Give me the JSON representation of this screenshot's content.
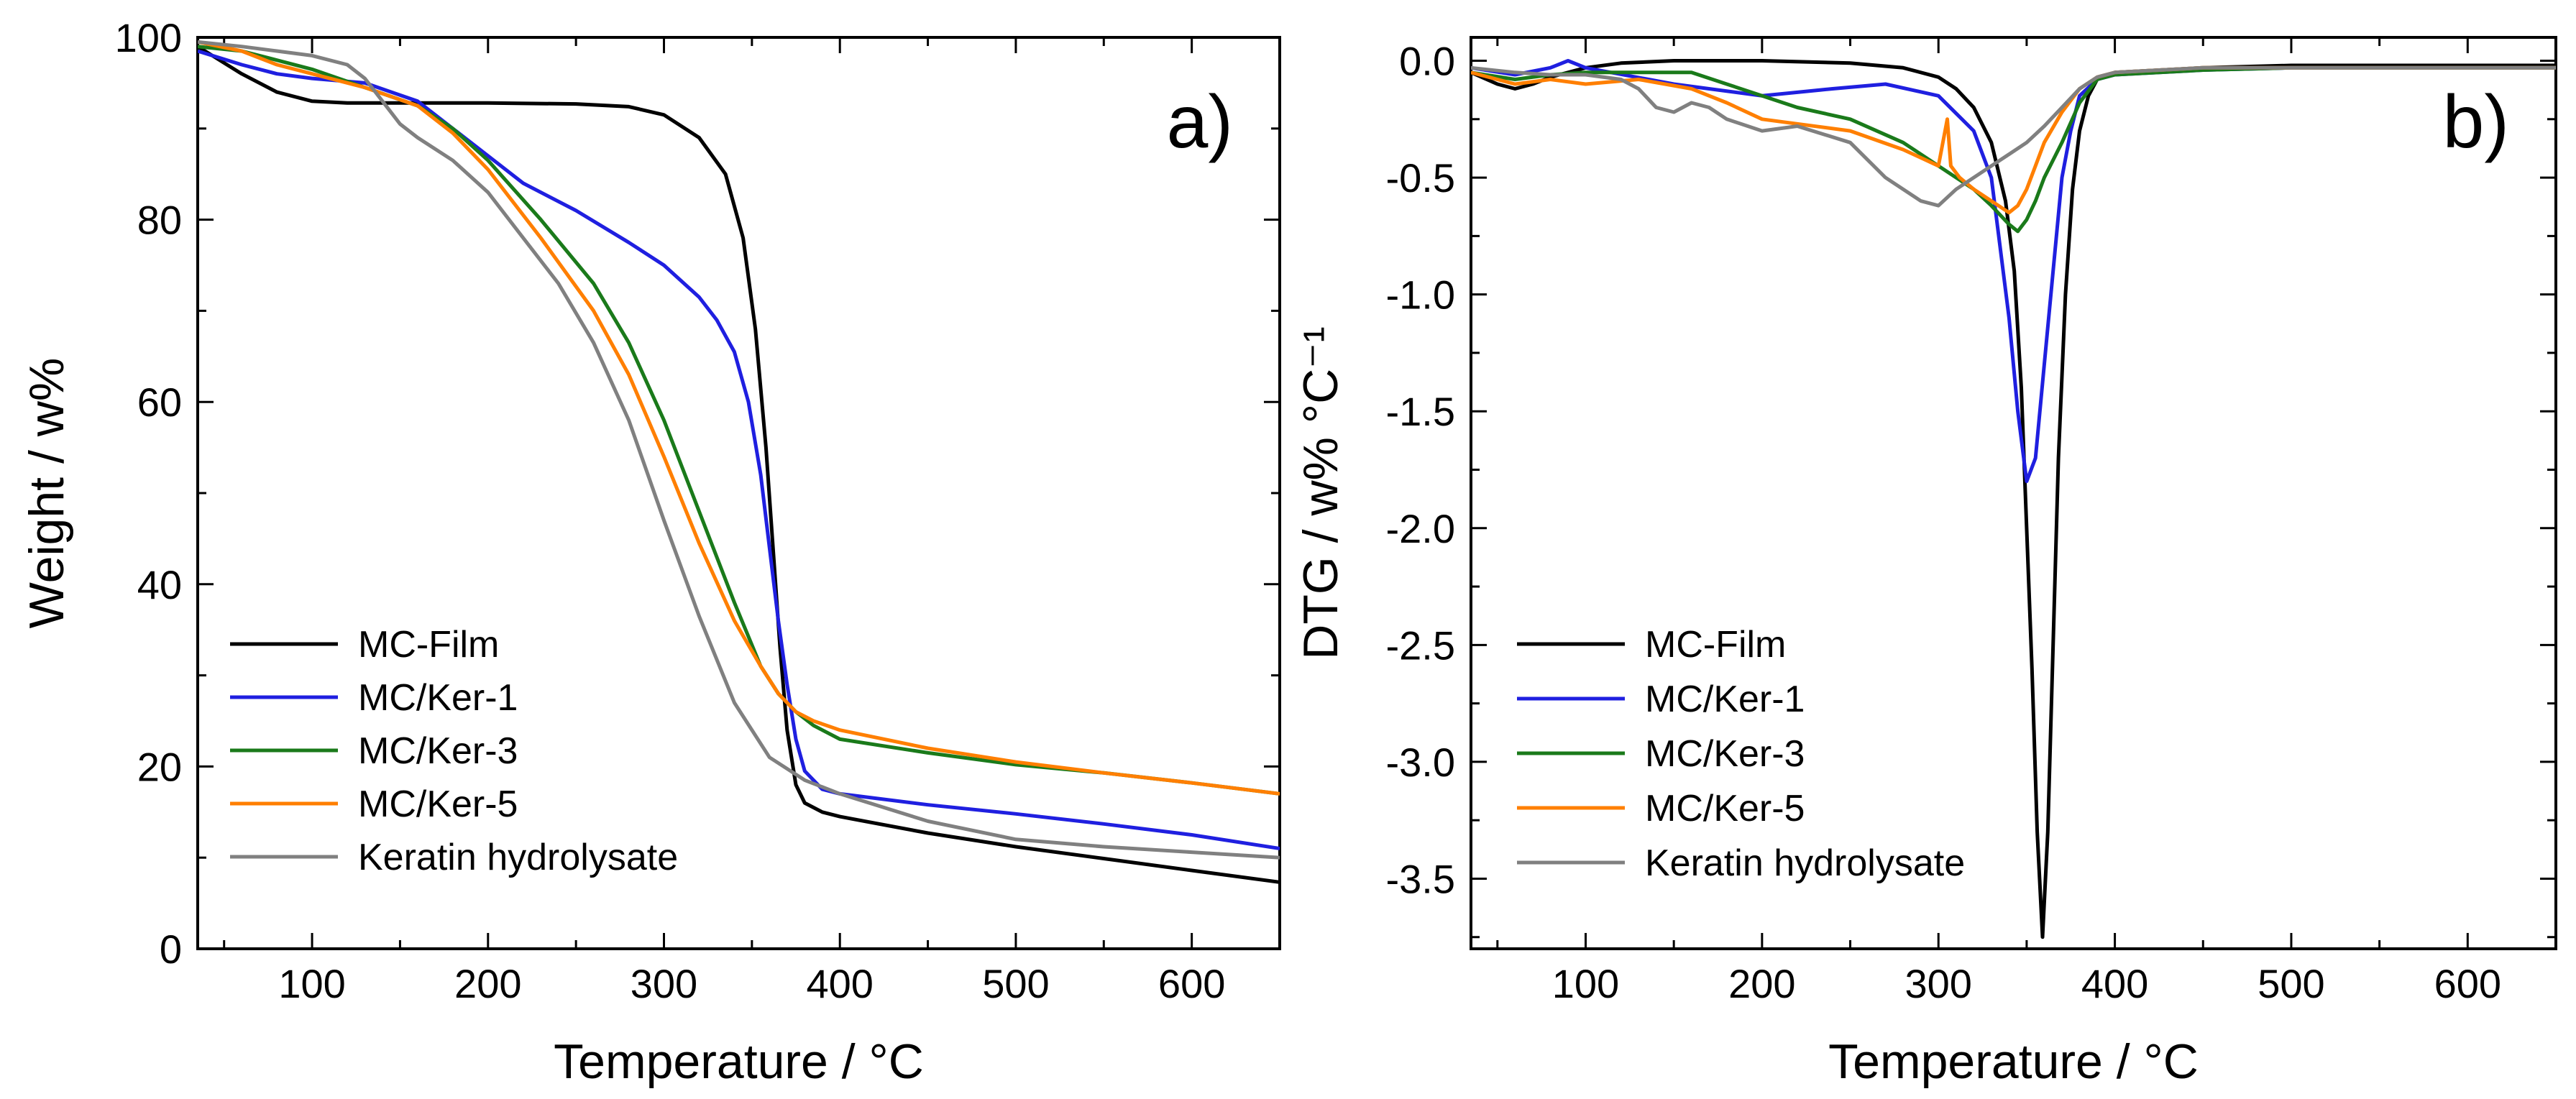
{
  "chart_data": [
    {
      "type": "line",
      "panel_label": "a)",
      "xlabel": "Temperature / °C",
      "ylabel": "Weight / w%",
      "xlim": [
        35,
        650
      ],
      "ylim": [
        0,
        100
      ],
      "xticks": [
        100,
        200,
        300,
        400,
        500,
        600
      ],
      "yticks": [
        0,
        20,
        40,
        60,
        80,
        100
      ],
      "legend_position": "bottom-left",
      "grid": false,
      "series": [
        {
          "name": "MC-Film",
          "color": "#000000",
          "x": [
            35,
            60,
            80,
            100,
            120,
            150,
            200,
            250,
            280,
            300,
            320,
            335,
            345,
            352,
            358,
            362,
            366,
            370,
            375,
            380,
            390,
            400,
            450,
            500,
            550,
            600,
            650
          ],
          "y": [
            99,
            96,
            94,
            93,
            92.8,
            92.8,
            92.8,
            92.7,
            92.4,
            91.5,
            89,
            85,
            78,
            68,
            55,
            44,
            33,
            24,
            18,
            16,
            15,
            14.5,
            12.7,
            11.2,
            9.9,
            8.6,
            7.3
          ]
        },
        {
          "name": "MC/Ker-1",
          "color": "#1f1fe0",
          "x": [
            35,
            60,
            80,
            100,
            130,
            160,
            180,
            200,
            220,
            250,
            280,
            300,
            320,
            330,
            340,
            348,
            355,
            360,
            365,
            370,
            375,
            380,
            390,
            400,
            450,
            500,
            550,
            600,
            650
          ],
          "y": [
            98.5,
            97,
            96,
            95.5,
            95,
            93,
            90,
            87,
            84,
            81,
            77.5,
            75,
            71.5,
            69,
            65.5,
            60,
            52,
            44,
            36,
            29,
            23,
            19.5,
            17.5,
            17,
            15.8,
            14.8,
            13.7,
            12.5,
            11
          ]
        },
        {
          "name": "MC/Ker-3",
          "color": "#1a7a1a",
          "x": [
            35,
            60,
            80,
            100,
            130,
            160,
            180,
            200,
            230,
            260,
            280,
            300,
            320,
            340,
            355,
            365,
            375,
            385,
            400,
            450,
            500,
            550,
            600,
            650
          ],
          "y": [
            99,
            98.5,
            97.5,
            96.5,
            94.5,
            92.5,
            90,
            86.5,
            80,
            73,
            66.5,
            58,
            48,
            38,
            31,
            28,
            26,
            24.5,
            23,
            21.5,
            20.2,
            19.3,
            18.2,
            17
          ]
        },
        {
          "name": "MC/Ker-5",
          "color": "#ff7f00",
          "x": [
            35,
            60,
            80,
            100,
            130,
            160,
            180,
            200,
            230,
            260,
            280,
            300,
            320,
            340,
            355,
            365,
            375,
            385,
            400,
            450,
            500,
            550,
            600,
            650
          ],
          "y": [
            99.5,
            98.5,
            97,
            96,
            94.5,
            92.5,
            89.5,
            85.5,
            78,
            70,
            63,
            54,
            44.5,
            36,
            31,
            28,
            26,
            25,
            24,
            22,
            20.5,
            19.3,
            18.2,
            17
          ]
        },
        {
          "name": "Keratin hydrolysate",
          "color": "#808080",
          "x": [
            35,
            60,
            80,
            100,
            120,
            130,
            140,
            150,
            160,
            180,
            200,
            220,
            240,
            260,
            280,
            300,
            320,
            340,
            360,
            380,
            400,
            450,
            500,
            550,
            600,
            650
          ],
          "y": [
            99.5,
            99,
            98.5,
            98,
            97,
            95.5,
            93,
            90.5,
            89,
            86.5,
            83,
            78,
            73,
            66.5,
            58,
            47,
            36.5,
            27,
            21,
            18.5,
            17,
            14,
            12,
            11.2,
            10.6,
            10
          ]
        }
      ]
    },
    {
      "type": "line",
      "panel_label": "b)",
      "xlabel": "Temperature / °C",
      "ylabel": "DTG / w% °C⁻¹",
      "xlim": [
        35,
        650
      ],
      "ylim": [
        -3.8,
        0.1
      ],
      "xticks": [
        100,
        200,
        300,
        400,
        500,
        600
      ],
      "yticks": [
        0.0,
        -0.5,
        -1.0,
        -1.5,
        -2.0,
        -2.5,
        -3.0,
        -3.5
      ],
      "ytick_labels": [
        "0.0",
        "-0.5",
        "-1.0",
        "-1.5",
        "-2.0",
        "-2.5",
        "-3.0",
        "-3.5"
      ],
      "legend_position": "bottom-left",
      "grid": false,
      "series": [
        {
          "name": "MC-Film",
          "color": "#000000",
          "x": [
            35,
            50,
            60,
            70,
            80,
            90,
            100,
            120,
            150,
            200,
            250,
            280,
            300,
            310,
            320,
            330,
            338,
            343,
            347,
            350,
            353,
            356,
            359,
            362,
            365,
            368,
            372,
            376,
            380,
            385,
            390,
            400,
            450,
            500,
            550,
            600,
            650
          ],
          "y": [
            -0.05,
            -0.1,
            -0.12,
            -0.1,
            -0.07,
            -0.05,
            -0.03,
            -0.01,
            0,
            0,
            -0.01,
            -0.03,
            -0.07,
            -0.12,
            -0.2,
            -0.35,
            -0.6,
            -0.9,
            -1.4,
            -2.0,
            -2.6,
            -3.3,
            -3.75,
            -3.3,
            -2.5,
            -1.7,
            -1.0,
            -0.55,
            -0.3,
            -0.15,
            -0.08,
            -0.05,
            -0.03,
            -0.02,
            -0.02,
            -0.02,
            -0.02
          ]
        },
        {
          "name": "MC/Ker-1",
          "color": "#1f1fe0",
          "x": [
            35,
            60,
            80,
            90,
            100,
            150,
            200,
            240,
            270,
            300,
            320,
            330,
            335,
            340,
            345,
            350,
            355,
            360,
            365,
            370,
            375,
            380,
            390,
            400,
            450,
            500,
            550,
            600,
            650
          ],
          "y": [
            -0.03,
            -0.06,
            -0.03,
            0,
            -0.03,
            -0.1,
            -0.15,
            -0.12,
            -0.1,
            -0.15,
            -0.3,
            -0.5,
            -0.8,
            -1.1,
            -1.5,
            -1.8,
            -1.7,
            -1.3,
            -0.9,
            -0.5,
            -0.3,
            -0.15,
            -0.08,
            -0.06,
            -0.04,
            -0.03,
            -0.03,
            -0.03,
            -0.03
          ]
        },
        {
          "name": "MC/Ker-3",
          "color": "#1a7a1a",
          "x": [
            35,
            60,
            80,
            100,
            130,
            160,
            180,
            200,
            220,
            250,
            280,
            300,
            320,
            330,
            340,
            345,
            350,
            355,
            360,
            370,
            380,
            390,
            400,
            450,
            500,
            550,
            600,
            650
          ],
          "y": [
            -0.05,
            -0.08,
            -0.06,
            -0.05,
            -0.05,
            -0.05,
            -0.1,
            -0.15,
            -0.2,
            -0.25,
            -0.35,
            -0.45,
            -0.55,
            -0.62,
            -0.7,
            -0.73,
            -0.68,
            -0.6,
            -0.5,
            -0.35,
            -0.18,
            -0.08,
            -0.06,
            -0.04,
            -0.03,
            -0.03,
            -0.03,
            -0.03
          ]
        },
        {
          "name": "MC/Ker-5",
          "color": "#ff7f00",
          "x": [
            35,
            60,
            80,
            100,
            130,
            160,
            180,
            200,
            220,
            250,
            280,
            300,
            305,
            307,
            312,
            320,
            330,
            340,
            345,
            350,
            355,
            360,
            370,
            380,
            390,
            400,
            450,
            500,
            550,
            600,
            650
          ],
          "y": [
            -0.05,
            -0.1,
            -0.08,
            -0.1,
            -0.08,
            -0.12,
            -0.18,
            -0.25,
            -0.27,
            -0.3,
            -0.38,
            -0.45,
            -0.25,
            -0.45,
            -0.5,
            -0.55,
            -0.6,
            -0.65,
            -0.62,
            -0.55,
            -0.45,
            -0.35,
            -0.22,
            -0.12,
            -0.07,
            -0.05,
            -0.03,
            -0.03,
            -0.03,
            -0.03,
            -0.03
          ]
        },
        {
          "name": "Keratin hydrolysate",
          "color": "#808080",
          "x": [
            35,
            60,
            80,
            100,
            120,
            130,
            140,
            150,
            160,
            170,
            180,
            200,
            220,
            250,
            270,
            290,
            300,
            310,
            320,
            330,
            340,
            350,
            360,
            370,
            380,
            390,
            400,
            450,
            500,
            550,
            600,
            650
          ],
          "y": [
            -0.03,
            -0.05,
            -0.06,
            -0.06,
            -0.08,
            -0.12,
            -0.2,
            -0.22,
            -0.18,
            -0.2,
            -0.25,
            -0.3,
            -0.28,
            -0.35,
            -0.5,
            -0.6,
            -0.62,
            -0.55,
            -0.5,
            -0.45,
            -0.4,
            -0.35,
            -0.28,
            -0.2,
            -0.12,
            -0.07,
            -0.05,
            -0.03,
            -0.03,
            -0.03,
            -0.03,
            -0.03
          ]
        }
      ]
    }
  ]
}
